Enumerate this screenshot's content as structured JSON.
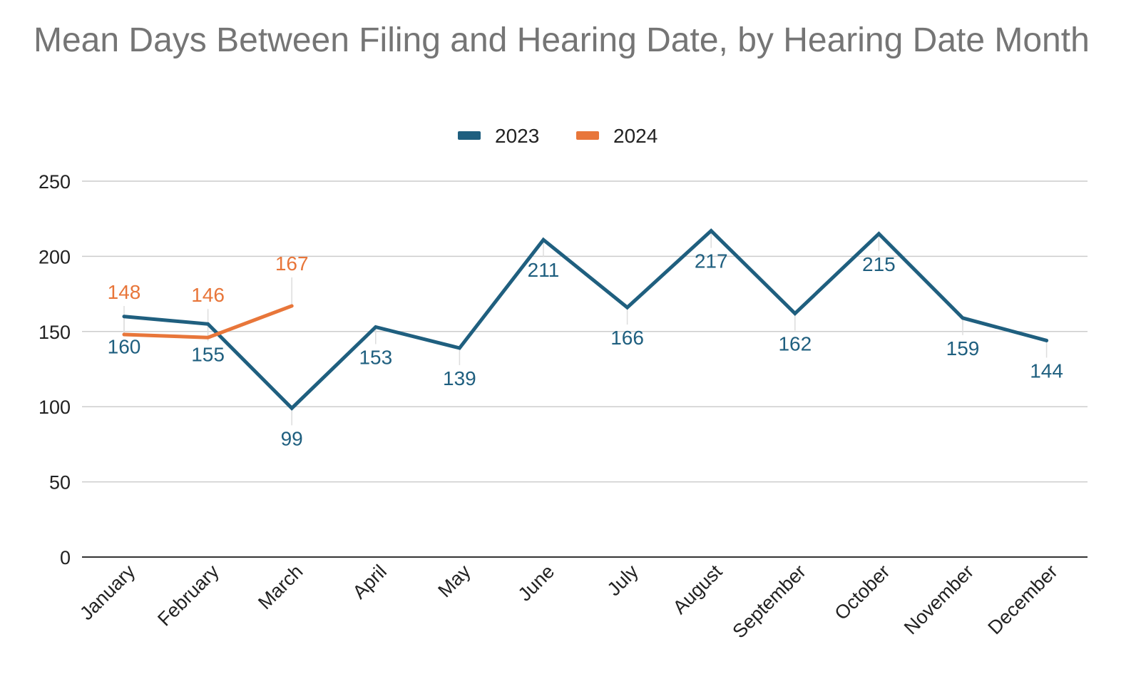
{
  "chart_data": {
    "type": "line",
    "title": "Mean Days Between Filing and Hearing Date, by Hearing Date Month",
    "xlabel": "",
    "ylabel": "",
    "categories": [
      "January",
      "February",
      "March",
      "April",
      "May",
      "June",
      "July",
      "August",
      "September",
      "October",
      "November",
      "December"
    ],
    "ylim": [
      0,
      250
    ],
    "yticks": [
      0,
      50,
      100,
      150,
      200,
      250
    ],
    "grid": true,
    "legend_position": "top-center",
    "series": [
      {
        "name": "2023",
        "color": "#1f5f7f",
        "values": [
          160,
          155,
          99,
          153,
          139,
          211,
          166,
          217,
          162,
          215,
          159,
          144
        ],
        "labels": [
          "160",
          "155",
          "99",
          "153",
          "139",
          "211",
          "166",
          "217",
          "162",
          "215",
          "159",
          "144"
        ]
      },
      {
        "name": "2024",
        "color": "#e8763a",
        "values": [
          148,
          146,
          167,
          null,
          null,
          null,
          null,
          null,
          null,
          null,
          null,
          null
        ],
        "labels": [
          "148",
          "146",
          "167",
          null,
          null,
          null,
          null,
          null,
          null,
          null,
          null,
          null
        ]
      }
    ]
  }
}
